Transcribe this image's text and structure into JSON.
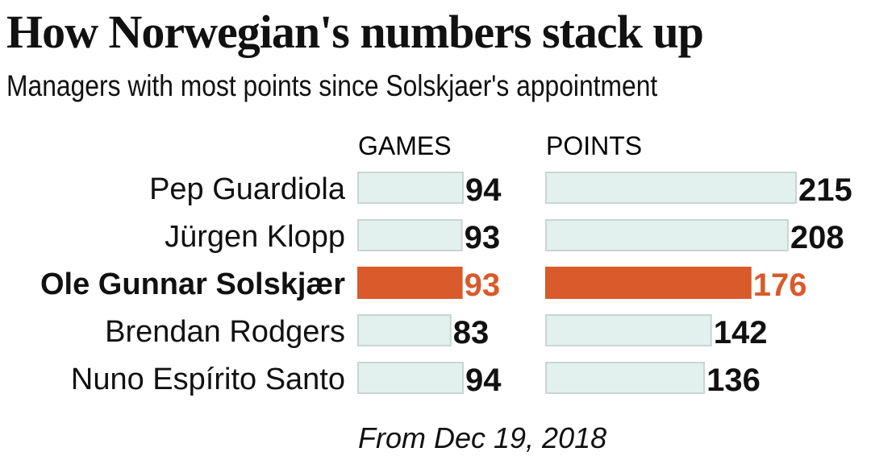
{
  "title": "How Norwegian's numbers stack up",
  "subtitle": "Managers with most points since Solskjaer's appointment",
  "chart_data": {
    "type": "bar",
    "title": "How Norwegian's numbers stack up",
    "subtitle": "Managers with most points since Solskjaer's appointment",
    "categories": [
      "Pep Guardiola",
      "Jürgen Klopp",
      "Ole Gunnar Solskjær",
      "Brendan Rodgers",
      "Nuno Espírito Santo"
    ],
    "highlight": "Ole Gunnar Solskjær",
    "series": [
      {
        "name": "GAMES",
        "values": [
          94,
          93,
          93,
          83,
          94
        ]
      },
      {
        "name": "POINTS",
        "values": [
          215,
          208,
          176,
          142,
          136
        ]
      }
    ],
    "note": "From Dec 19, 2018"
  },
  "colors": {
    "bar": "#e3f1ee",
    "bar_border": "#c8d6d2",
    "highlight": "#d95a2b",
    "text": "#111111"
  }
}
